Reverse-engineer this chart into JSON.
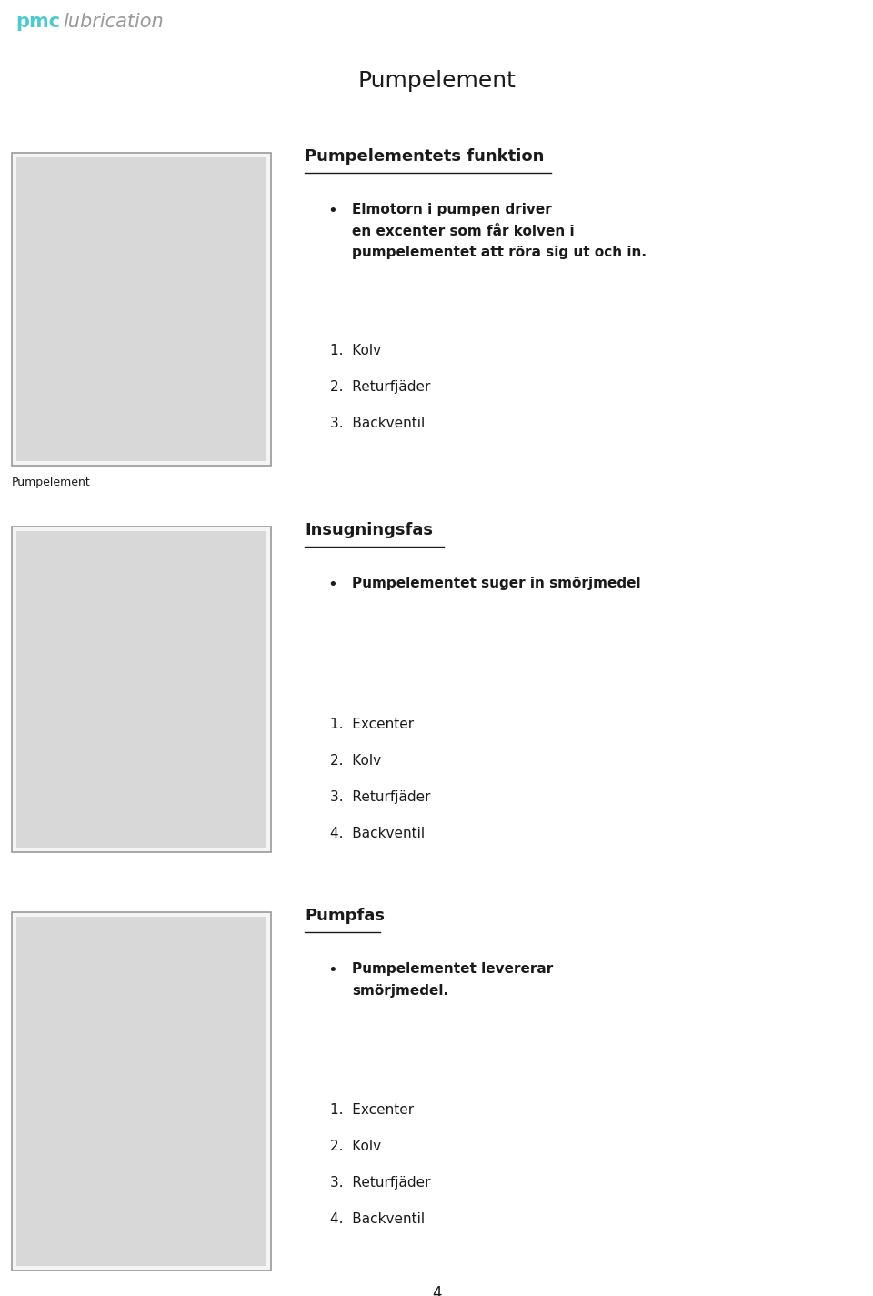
{
  "page_bg": "#ffffff",
  "header_bg": "#6bbfcc",
  "header_text": "Pumpelement",
  "header_text_color": "#1a1a1a",
  "header_font_size": 18,
  "logo_pmc_color": "#4ecacf",
  "logo_text_color": "#999999",
  "section1_bg": "#c8bfb0",
  "section2_bg": "#a8d8dc",
  "section3_bg": "#c8bfb0",
  "section1_title": "Pumpelementets funktion",
  "section1_bullet": "Elmotorn i pumpen driver\nen excenter som får kolven i\npumpelementet att röra sig ut och in.",
  "section1_list": [
    "1.  Kolv",
    "2.  Returfjäder",
    "3.  Backventil"
  ],
  "section1_label": "Pumpelement",
  "section2_title": "Insugningsfas",
  "section2_bullet": "Pumpelementet suger in smörjmedel",
  "section2_list": [
    "1.  Excenter",
    "2.  Kolv",
    "3.  Returfjäder",
    "4.  Backventil"
  ],
  "section3_title": "Pumpfas",
  "section3_bullet": "Pumpelementet levererar\nsmörjmedel.",
  "section3_list": [
    "1.  Excenter",
    "2.  Kolv",
    "3.  Returfjäder",
    "4.  Backventil"
  ],
  "footer_text": "4",
  "text_color": "#1a1a1a",
  "bullet_font_size": 11,
  "list_font_size": 11,
  "title_font_size": 13
}
